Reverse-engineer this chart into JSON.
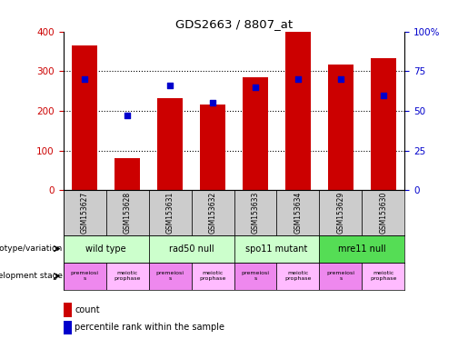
{
  "title": "GDS2663 / 8807_at",
  "samples": [
    "GSM153627",
    "GSM153628",
    "GSM153631",
    "GSM153632",
    "GSM153633",
    "GSM153634",
    "GSM153629",
    "GSM153630"
  ],
  "counts": [
    365,
    82,
    232,
    215,
    285,
    400,
    317,
    332
  ],
  "percentiles": [
    70,
    47,
    66,
    55,
    65,
    70,
    70,
    60
  ],
  "ylim_left": [
    0,
    400
  ],
  "ylim_right": [
    0,
    100
  ],
  "yticks_left": [
    0,
    100,
    200,
    300,
    400
  ],
  "yticks_right": [
    0,
    25,
    50,
    75,
    100
  ],
  "yticklabels_right": [
    "0",
    "25",
    "50",
    "75",
    "100%"
  ],
  "bar_color": "#cc0000",
  "dot_color": "#0000cc",
  "genotype_groups": [
    {
      "label": "wild type",
      "start": 0,
      "end": 2,
      "color": "#ccffcc"
    },
    {
      "label": "rad50 null",
      "start": 2,
      "end": 4,
      "color": "#ccffcc"
    },
    {
      "label": "spo11 mutant",
      "start": 4,
      "end": 6,
      "color": "#ccffcc"
    },
    {
      "label": "mre11 null",
      "start": 6,
      "end": 8,
      "color": "#55dd55"
    }
  ],
  "dev_odd_color": "#ee88ee",
  "dev_even_color": "#ffbbff",
  "dev_labels": [
    "premeiosi\ns",
    "meiotic\nprophase",
    "premeiosi\ns",
    "meiotic\nprophase",
    "premeiosi\ns",
    "meiotic\nprophase",
    "premeiosi\ns",
    "meiotic\nprophase"
  ],
  "gsm_bg_color": "#cccccc",
  "left_label": "genotype/variation",
  "right_label": "development stage",
  "legend_count_label": "count",
  "legend_pct_label": "percentile rank within the sample",
  "bar_width": 0.6,
  "figsize": [
    5.15,
    3.84
  ],
  "dpi": 100
}
